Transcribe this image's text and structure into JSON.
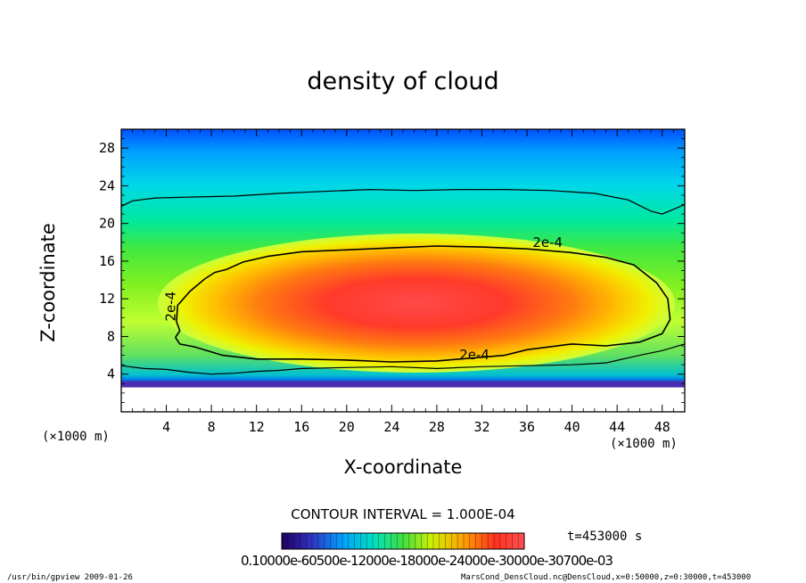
{
  "chart_data": {
    "type": "heatmap",
    "title": "density of cloud",
    "xlabel": "X-coordinate",
    "ylabel": "Z-coordinate",
    "x_unit": "(×1000 m)",
    "y_unit": "(×1000 m)",
    "xlim": [
      0,
      50
    ],
    "ylim": [
      0,
      30
    ],
    "x_ticks": [
      4,
      8,
      12,
      16,
      20,
      24,
      28,
      32,
      36,
      40,
      44,
      48
    ],
    "y_ticks": [
      4,
      8,
      12,
      16,
      20,
      24,
      28
    ],
    "contour_label": "2e-4",
    "contour_interval": "CONTOUR INTERVAL = 1.000E-04",
    "time_label": "t=453000 s",
    "colorbar_labels": "0.10000e-60500e-12000e-18000e-24000e-30000e-30700e-03",
    "colormap": [
      "#1a0050",
      "#2020c0",
      "#00a0ff",
      "#00e0c0",
      "#40e040",
      "#e0f000",
      "#ffa000",
      "#ff3020",
      "#ff5050"
    ],
    "contours_2e-4": {
      "outer": [
        [
          4.8,
          7.9
        ],
        [
          5.2,
          8.6
        ],
        [
          4.9,
          9.6
        ],
        [
          5.0,
          11.3
        ],
        [
          6.1,
          12.8
        ],
        [
          7.4,
          14.1
        ],
        [
          8.3,
          14.8
        ],
        [
          9.3,
          15.1
        ],
        [
          10.8,
          15.9
        ],
        [
          13.0,
          16.5
        ],
        [
          16.0,
          17.0
        ],
        [
          20.0,
          17.2
        ],
        [
          24.0,
          17.4
        ],
        [
          28.0,
          17.6
        ],
        [
          32.0,
          17.5
        ],
        [
          36.0,
          17.3
        ],
        [
          40.0,
          16.9
        ],
        [
          43.0,
          16.4
        ],
        [
          45.5,
          15.6
        ],
        [
          47.5,
          13.7
        ],
        [
          48.5,
          12.0
        ],
        [
          48.7,
          9.8
        ],
        [
          48.0,
          8.3
        ],
        [
          46.0,
          7.4
        ],
        [
          43.0,
          7.0
        ],
        [
          40.0,
          7.2
        ],
        [
          36.0,
          6.6
        ],
        [
          34.0,
          6.0
        ],
        [
          30.0,
          5.6
        ],
        [
          28.0,
          5.4
        ],
        [
          24.0,
          5.3
        ],
        [
          20.0,
          5.5
        ],
        [
          16.0,
          5.6
        ],
        [
          12.0,
          5.6
        ],
        [
          9.0,
          6.0
        ],
        [
          6.5,
          6.9
        ],
        [
          5.2,
          7.2
        ],
        [
          4.8,
          7.9
        ]
      ],
      "upper_cloud": [
        [
          0.0,
          21.8
        ],
        [
          1.0,
          22.4
        ],
        [
          3.0,
          22.7
        ],
        [
          6.0,
          22.8
        ],
        [
          10.0,
          22.9
        ],
        [
          14.0,
          23.2
        ],
        [
          18.0,
          23.4
        ],
        [
          22.0,
          23.6
        ],
        [
          26.0,
          23.5
        ],
        [
          30.0,
          23.6
        ],
        [
          34.0,
          23.6
        ],
        [
          38.0,
          23.5
        ],
        [
          42.0,
          23.2
        ],
        [
          45.0,
          22.5
        ],
        [
          47.0,
          21.3
        ],
        [
          48.0,
          21.0
        ],
        [
          49.0,
          21.5
        ],
        [
          50.0,
          22.0
        ]
      ],
      "lower_cloud": [
        [
          0.0,
          4.9
        ],
        [
          2.0,
          4.6
        ],
        [
          4.0,
          4.5
        ],
        [
          6.0,
          4.2
        ],
        [
          8.0,
          4.0
        ],
        [
          10.0,
          4.1
        ],
        [
          12.0,
          4.3
        ],
        [
          14.0,
          4.4
        ],
        [
          16.0,
          4.6
        ],
        [
          20.0,
          4.7
        ],
        [
          24.0,
          4.8
        ],
        [
          28.0,
          4.6
        ],
        [
          32.0,
          4.8
        ],
        [
          36.0,
          4.9
        ],
        [
          40.0,
          5.0
        ],
        [
          43.0,
          5.2
        ],
        [
          46.0,
          6.0
        ],
        [
          48.0,
          6.5
        ],
        [
          50.0,
          7.2
        ]
      ]
    },
    "contour_label_positions": [
      [
        36.5,
        17.5
      ],
      [
        30.0,
        5.6
      ],
      [
        4.8,
        9.6
      ]
    ],
    "footer_left": "/usr/bin/gpview  2009-01-26",
    "footer_right": "MarsCond_DensCloud.nc@DensCloud,x=0:50000,z=0:30000,t=453000"
  }
}
